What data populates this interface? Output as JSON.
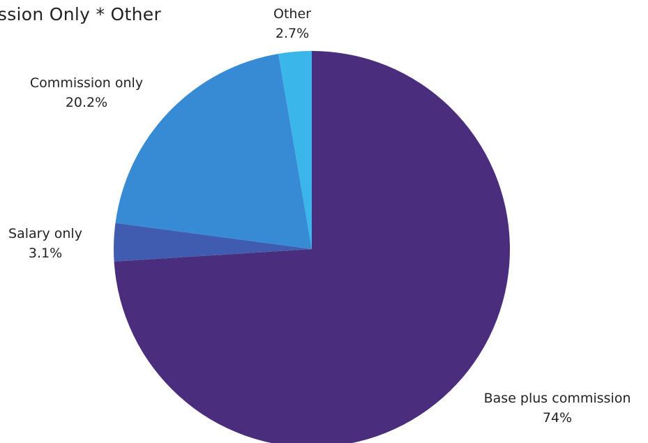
{
  "chart_data": {
    "type": "pie",
    "title": "Commission Only * Other",
    "slices": [
      {
        "label": "Base plus commission",
        "value": 74.0,
        "value_label": "74%",
        "color": "#4a2d7c"
      },
      {
        "label": "Salary only",
        "value": 3.1,
        "value_label": "3.1%",
        "color": "#3f5cb0"
      },
      {
        "label": "Commission only",
        "value": 20.2,
        "value_label": "20.2%",
        "color": "#378bd4"
      },
      {
        "label": "Other",
        "value": 2.7,
        "value_label": "2.7%",
        "color": "#3bb6ea"
      }
    ]
  }
}
